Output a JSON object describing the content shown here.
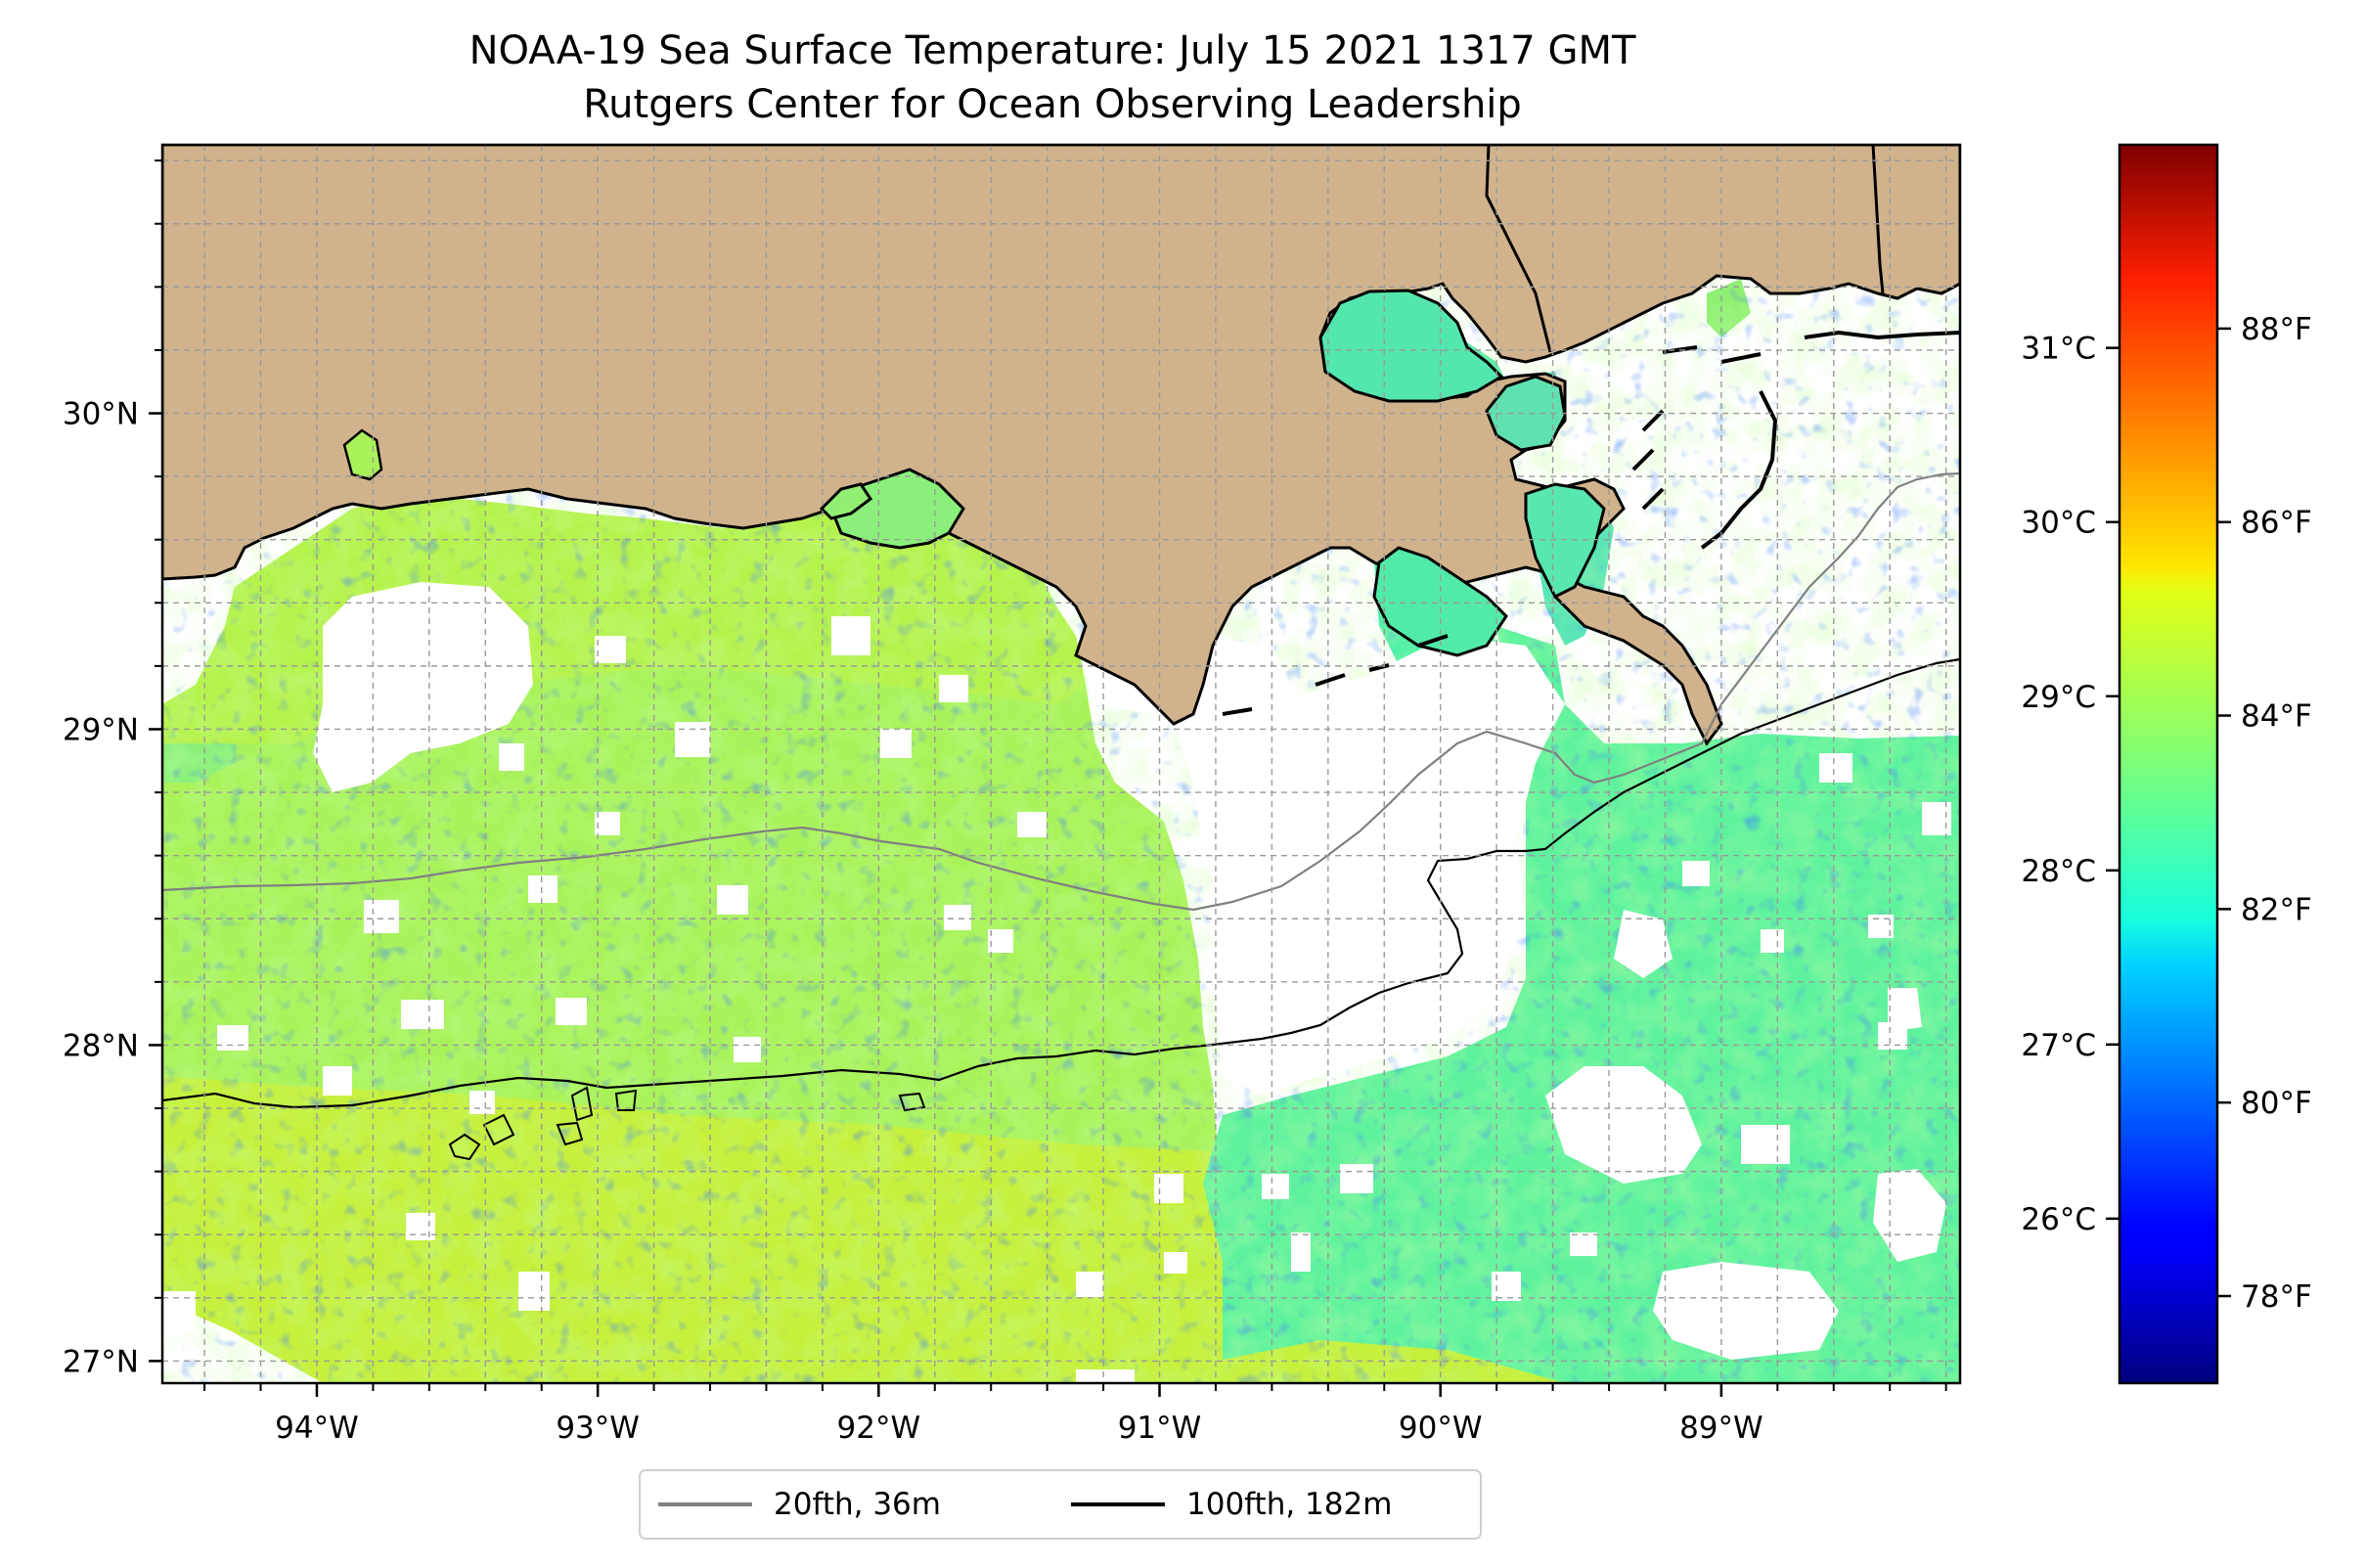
{
  "title": {
    "line1": "NOAA-19 Sea Surface Temperature: July 15 2021 1317 GMT",
    "line2": "Rutgers Center for Ocean Observing Leadership"
  },
  "map": {
    "lon_range": [
      -94.55,
      -88.15
    ],
    "lat_range": [
      26.93,
      30.85
    ],
    "lon_ticks": [
      {
        "value": -94,
        "label": "94°W"
      },
      {
        "value": -93,
        "label": "93°W"
      },
      {
        "value": -92,
        "label": "92°W"
      },
      {
        "value": -91,
        "label": "91°W"
      },
      {
        "value": -90,
        "label": "90°W"
      },
      {
        "value": -89,
        "label": "89°W"
      }
    ],
    "lat_ticks": [
      {
        "value": 27,
        "label": "27°N"
      },
      {
        "value": 28,
        "label": "28°N"
      },
      {
        "value": 29,
        "label": "29°N"
      },
      {
        "value": 30,
        "label": "30°N"
      }
    ],
    "gridlines": true,
    "land_color": "#d0b38c",
    "coast_color": "#000000"
  },
  "legend": {
    "placement": "bottom-center",
    "items": [
      {
        "label": "20fth, 36m",
        "color": "#808080"
      },
      {
        "label": "100fth, 182m",
        "color": "#000000"
      }
    ]
  },
  "colorbar": {
    "colormap": "jet",
    "range_f": [
      77.1,
      89.9
    ],
    "ticks_c": [
      {
        "value": 26,
        "label": "26°C"
      },
      {
        "value": 27,
        "label": "27°C"
      },
      {
        "value": 28,
        "label": "28°C"
      },
      {
        "value": 29,
        "label": "29°C"
      },
      {
        "value": 30,
        "label": "30°C"
      },
      {
        "value": 31,
        "label": "31°C"
      }
    ],
    "ticks_f": [
      {
        "value": 78,
        "label": "78°F"
      },
      {
        "value": 80,
        "label": "80°F"
      },
      {
        "value": 82,
        "label": "82°F"
      },
      {
        "value": 84,
        "label": "84°F"
      },
      {
        "value": 86,
        "label": "86°F"
      },
      {
        "value": 88,
        "label": "88°F"
      }
    ]
  }
}
